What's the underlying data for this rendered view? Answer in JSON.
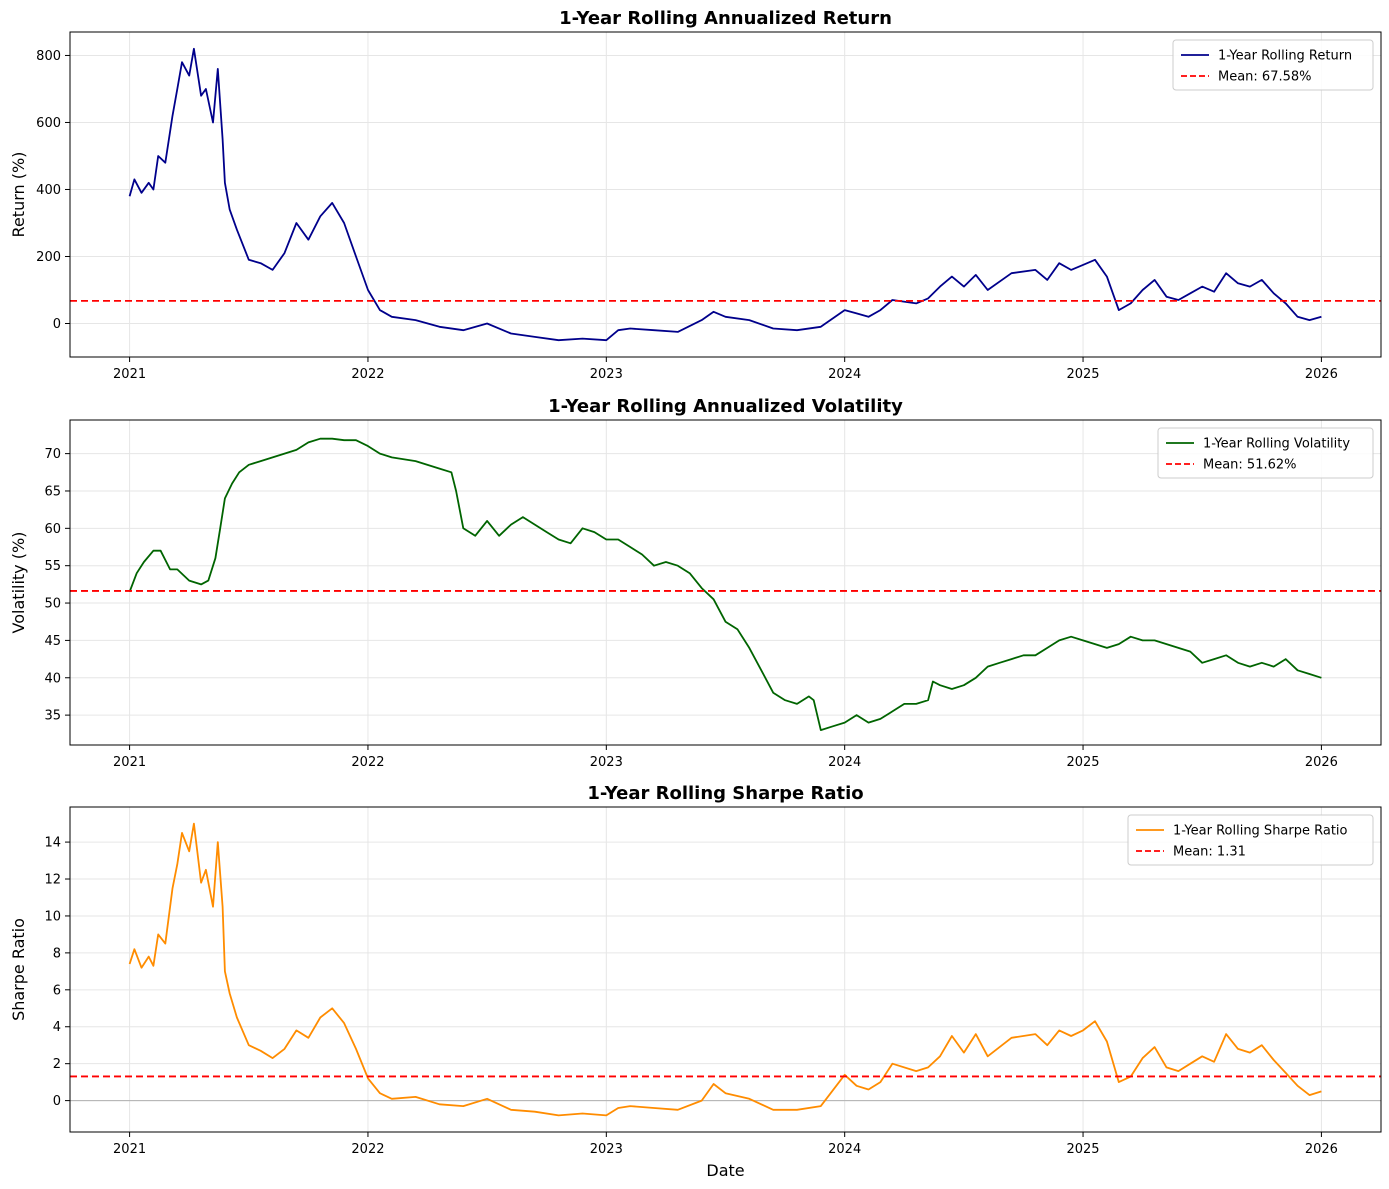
{
  "chart_data": [
    {
      "type": "line",
      "title": "1-Year Rolling Annualized Return",
      "xlabel": "",
      "ylabel": "Return (%)",
      "xlim": [
        2020.75,
        2026.25
      ],
      "ylim": [
        -100,
        870
      ],
      "xticks": [
        2021,
        2022,
        2023,
        2024,
        2025,
        2026
      ],
      "xtick_labels": [
        "2021",
        "2022",
        "2023",
        "2024",
        "2025",
        "2026"
      ],
      "yticks": [
        0,
        200,
        400,
        600,
        800
      ],
      "ytick_labels": [
        "0",
        "200",
        "400",
        "600",
        "800"
      ],
      "grid": true,
      "legend_position": "top-right",
      "series": [
        {
          "name": "1-Year Rolling Return",
          "color": "#00008b",
          "x": [
            2021.0,
            2021.02,
            2021.05,
            2021.08,
            2021.1,
            2021.12,
            2021.15,
            2021.18,
            2021.2,
            2021.22,
            2021.25,
            2021.27,
            2021.3,
            2021.32,
            2021.35,
            2021.37,
            2021.39,
            2021.4,
            2021.42,
            2021.45,
            2021.5,
            2021.55,
            2021.6,
            2021.65,
            2021.7,
            2021.75,
            2021.8,
            2021.85,
            2021.9,
            2021.95,
            2022.0,
            2022.05,
            2022.1,
            2022.2,
            2022.3,
            2022.4,
            2022.5,
            2022.6,
            2022.7,
            2022.8,
            2022.9,
            2023.0,
            2023.05,
            2023.1,
            2023.2,
            2023.3,
            2023.4,
            2023.45,
            2023.5,
            2023.6,
            2023.7,
            2023.8,
            2023.9,
            2024.0,
            2024.05,
            2024.1,
            2024.15,
            2024.2,
            2024.3,
            2024.35,
            2024.4,
            2024.45,
            2024.5,
            2024.55,
            2024.6,
            2024.7,
            2024.8,
            2024.85,
            2024.9,
            2024.95,
            2025.0,
            2025.05,
            2025.1,
            2025.15,
            2025.2,
            2025.25,
            2025.3,
            2025.35,
            2025.4,
            2025.45,
            2025.5,
            2025.55,
            2025.6,
            2025.65,
            2025.7,
            2025.75,
            2025.8,
            2025.85,
            2025.9,
            2025.95,
            2026.0
          ],
          "values": [
            380,
            430,
            390,
            420,
            400,
            500,
            480,
            620,
            700,
            780,
            740,
            820,
            680,
            700,
            600,
            760,
            550,
            420,
            340,
            280,
            190,
            180,
            160,
            210,
            300,
            250,
            320,
            360,
            300,
            200,
            100,
            40,
            20,
            10,
            -10,
            -20,
            0,
            -30,
            -40,
            -50,
            -45,
            -50,
            -20,
            -15,
            -20,
            -25,
            10,
            35,
            20,
            10,
            -15,
            -20,
            -10,
            40,
            30,
            20,
            40,
            70,
            60,
            75,
            110,
            140,
            110,
            145,
            100,
            150,
            160,
            130,
            180,
            160,
            175,
            190,
            140,
            40,
            60,
            100,
            130,
            80,
            70,
            90,
            110,
            95,
            150,
            120,
            110,
            130,
            90,
            60,
            20,
            10,
            20
          ]
        },
        {
          "name": "Mean: 67.58%",
          "color": "#ff0000",
          "style": "dashed",
          "constant": 67.58
        }
      ]
    },
    {
      "type": "line",
      "title": "1-Year Rolling Annualized Volatility",
      "xlabel": "",
      "ylabel": "Volatility (%)",
      "xlim": [
        2020.75,
        2026.25
      ],
      "ylim": [
        31,
        74.5
      ],
      "xticks": [
        2021,
        2022,
        2023,
        2024,
        2025,
        2026
      ],
      "xtick_labels": [
        "2021",
        "2022",
        "2023",
        "2024",
        "2025",
        "2026"
      ],
      "yticks": [
        35,
        40,
        45,
        50,
        55,
        60,
        65,
        70
      ],
      "ytick_labels": [
        "35",
        "40",
        "45",
        "50",
        "55",
        "60",
        "65",
        "70"
      ],
      "grid": true,
      "legend_position": "top-right",
      "series": [
        {
          "name": "1-Year Rolling Volatility",
          "color": "#006400",
          "x": [
            2021.0,
            2021.03,
            2021.06,
            2021.1,
            2021.13,
            2021.17,
            2021.2,
            2021.25,
            2021.3,
            2021.33,
            2021.36,
            2021.38,
            2021.4,
            2021.43,
            2021.46,
            2021.5,
            2021.55,
            2021.6,
            2021.65,
            2021.7,
            2021.75,
            2021.8,
            2021.85,
            2021.9,
            2021.95,
            2022.0,
            2022.05,
            2022.1,
            2022.2,
            2022.3,
            2022.35,
            2022.37,
            2022.4,
            2022.45,
            2022.5,
            2022.55,
            2022.6,
            2022.65,
            2022.7,
            2022.75,
            2022.8,
            2022.85,
            2022.9,
            2022.95,
            2023.0,
            2023.05,
            2023.1,
            2023.15,
            2023.2,
            2023.25,
            2023.3,
            2023.35,
            2023.4,
            2023.45,
            2023.5,
            2023.55,
            2023.6,
            2023.65,
            2023.7,
            2023.75,
            2023.8,
            2023.85,
            2023.87,
            2023.9,
            2023.95,
            2024.0,
            2024.05,
            2024.1,
            2024.15,
            2024.2,
            2024.25,
            2024.3,
            2024.35,
            2024.37,
            2024.4,
            2024.45,
            2024.5,
            2024.55,
            2024.6,
            2024.65,
            2024.7,
            2024.75,
            2024.8,
            2024.85,
            2024.9,
            2024.95,
            2025.0,
            2025.05,
            2025.1,
            2025.15,
            2025.2,
            2025.25,
            2025.3,
            2025.35,
            2025.4,
            2025.45,
            2025.5,
            2025.55,
            2025.6,
            2025.65,
            2025.7,
            2025.75,
            2025.8,
            2025.85,
            2025.9,
            2025.95,
            2026.0
          ],
          "values": [
            51.5,
            54,
            55.5,
            57,
            57,
            54.5,
            54.5,
            53,
            52.5,
            53,
            56,
            60,
            64,
            66,
            67.5,
            68.5,
            69,
            69.5,
            70,
            70.5,
            71.5,
            72,
            72,
            71.8,
            71.8,
            71,
            70,
            69.5,
            69,
            68,
            67.5,
            65,
            60,
            59,
            61,
            59,
            60.5,
            61.5,
            60.5,
            59.5,
            58.5,
            58,
            60,
            59.5,
            58.5,
            58.5,
            57.5,
            56.5,
            55,
            55.5,
            55,
            54,
            52,
            50.5,
            47.5,
            46.5,
            44,
            41,
            38,
            37,
            36.5,
            37.5,
            37,
            33,
            33.5,
            34,
            35,
            34,
            34.5,
            35.5,
            36.5,
            36.5,
            37,
            39.5,
            39,
            38.5,
            39,
            40,
            41.5,
            42,
            42.5,
            43,
            43,
            44,
            45,
            45.5,
            45,
            44.5,
            44,
            44.5,
            45.5,
            45,
            45,
            44.5,
            44,
            43.5,
            42,
            42.5,
            43,
            42,
            41.5,
            42,
            41.5,
            42.5,
            41,
            40.5,
            40
          ]
        },
        {
          "name": "Mean: 51.62%",
          "color": "#ff0000",
          "style": "dashed",
          "constant": 51.62
        }
      ]
    },
    {
      "type": "line",
      "title": "1-Year Rolling Sharpe Ratio",
      "xlabel": "Date",
      "ylabel": "Sharpe Ratio",
      "xlim": [
        2020.75,
        2026.25
      ],
      "ylim": [
        -1.7,
        15.9
      ],
      "xticks": [
        2021,
        2022,
        2023,
        2024,
        2025,
        2026
      ],
      "xtick_labels": [
        "2021",
        "2022",
        "2023",
        "2024",
        "2025",
        "2026"
      ],
      "yticks": [
        0,
        2,
        4,
        6,
        8,
        10,
        12,
        14
      ],
      "ytick_labels": [
        "0",
        "2",
        "4",
        "6",
        "8",
        "10",
        "12",
        "14"
      ],
      "grid": true,
      "legend_position": "top-right",
      "zero_line": true,
      "series": [
        {
          "name": "1-Year Rolling Sharpe Ratio",
          "color": "#ff8c00",
          "x": [
            2021.0,
            2021.02,
            2021.05,
            2021.08,
            2021.1,
            2021.12,
            2021.15,
            2021.18,
            2021.2,
            2021.22,
            2021.25,
            2021.27,
            2021.3,
            2021.32,
            2021.35,
            2021.37,
            2021.39,
            2021.4,
            2021.42,
            2021.45,
            2021.5,
            2021.55,
            2021.6,
            2021.65,
            2021.7,
            2021.75,
            2021.8,
            2021.85,
            2021.9,
            2021.95,
            2022.0,
            2022.05,
            2022.1,
            2022.2,
            2022.3,
            2022.4,
            2022.5,
            2022.6,
            2022.7,
            2022.8,
            2022.9,
            2023.0,
            2023.05,
            2023.1,
            2023.2,
            2023.3,
            2023.4,
            2023.45,
            2023.5,
            2023.6,
            2023.7,
            2023.8,
            2023.9,
            2024.0,
            2024.05,
            2024.1,
            2024.15,
            2024.2,
            2024.3,
            2024.35,
            2024.4,
            2024.45,
            2024.5,
            2024.55,
            2024.6,
            2024.7,
            2024.8,
            2024.85,
            2024.9,
            2024.95,
            2025.0,
            2025.05,
            2025.1,
            2025.15,
            2025.2,
            2025.25,
            2025.3,
            2025.35,
            2025.4,
            2025.45,
            2025.5,
            2025.55,
            2025.6,
            2025.65,
            2025.7,
            2025.75,
            2025.8,
            2025.85,
            2025.9,
            2025.95,
            2026.0
          ],
          "values": [
            7.4,
            8.2,
            7.2,
            7.8,
            7.3,
            9.0,
            8.5,
            11.5,
            12.8,
            14.5,
            13.5,
            15.0,
            11.8,
            12.5,
            10.5,
            14.0,
            10.5,
            7.0,
            5.8,
            4.5,
            3.0,
            2.7,
            2.3,
            2.8,
            3.8,
            3.4,
            4.5,
            5.0,
            4.2,
            2.8,
            1.2,
            0.4,
            0.1,
            0.2,
            -0.2,
            -0.3,
            0.1,
            -0.5,
            -0.6,
            -0.8,
            -0.7,
            -0.8,
            -0.4,
            -0.3,
            -0.4,
            -0.5,
            0.0,
            0.9,
            0.4,
            0.1,
            -0.5,
            -0.5,
            -0.3,
            1.4,
            0.8,
            0.6,
            1.0,
            2.0,
            1.6,
            1.8,
            2.4,
            3.5,
            2.6,
            3.6,
            2.4,
            3.4,
            3.6,
            3.0,
            3.8,
            3.5,
            3.8,
            4.3,
            3.2,
            1.0,
            1.3,
            2.3,
            2.9,
            1.8,
            1.6,
            2.0,
            2.4,
            2.1,
            3.6,
            2.8,
            2.6,
            3.0,
            2.2,
            1.5,
            0.8,
            0.3,
            0.5
          ]
        },
        {
          "name": "Mean: 1.31",
          "color": "#ff0000",
          "style": "dashed",
          "constant": 1.31
        }
      ]
    }
  ]
}
